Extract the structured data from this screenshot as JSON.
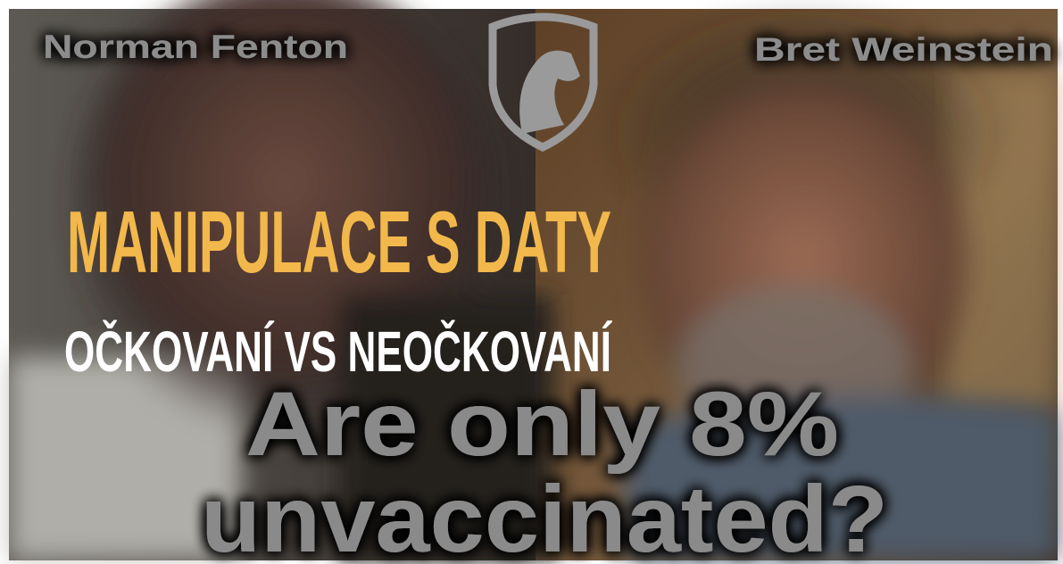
{
  "left_name": "Norman Fenton",
  "right_name": "Bret Weinstein",
  "headline": "MANIPULACE S DATY",
  "subheadline": "OČKOVANÍ VS NEOČKOVANÍ",
  "question": [
    "Are only 8%",
    "unvaccinated?"
  ]
}
